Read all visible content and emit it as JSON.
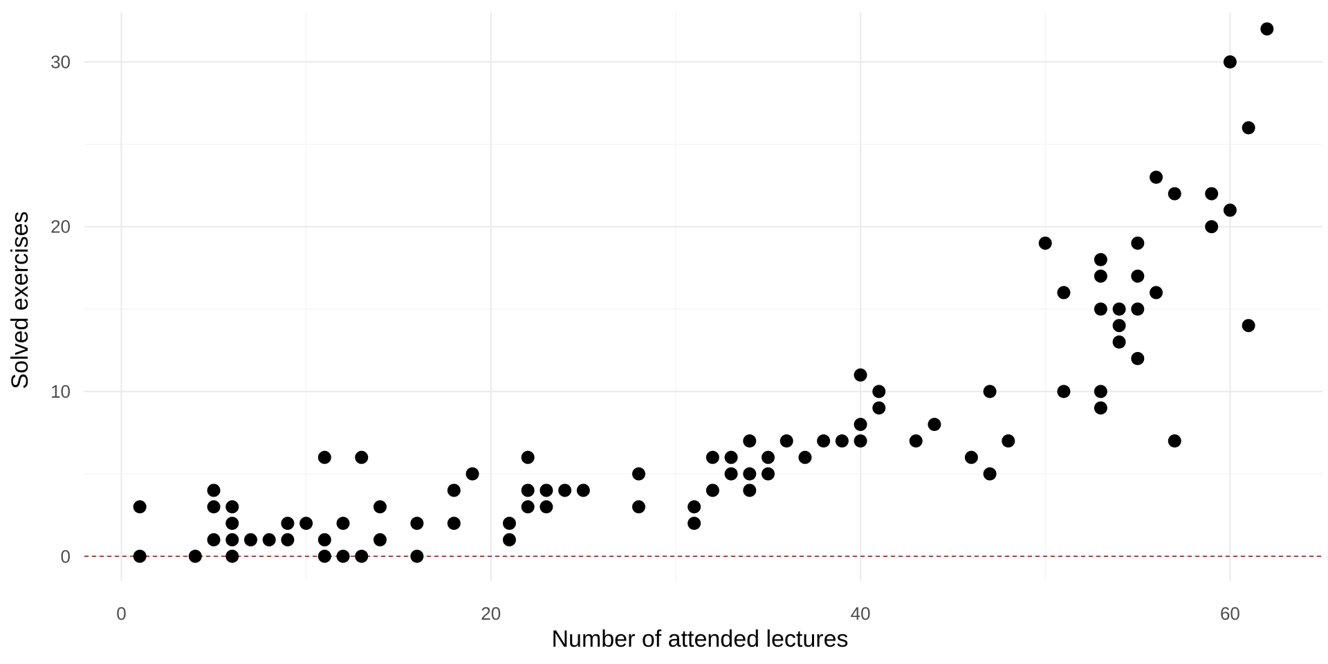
{
  "chart_data": {
    "type": "scatter",
    "xlabel": "Number of attended lectures",
    "ylabel": "Solved exercises",
    "xlim": [
      -2,
      65
    ],
    "ylim": [
      -1.5,
      33
    ],
    "x_ticks": [
      0,
      20,
      40,
      60
    ],
    "y_ticks": [
      0,
      10,
      20,
      30
    ],
    "x_minor_ticks": [
      10,
      30,
      50
    ],
    "y_minor_ticks": [
      5,
      15,
      25
    ],
    "grid": true,
    "legend": "none",
    "reference_line": {
      "y": 0,
      "style": "dashed",
      "color": "#8b1a1a"
    },
    "point_color": "#000000",
    "points": [
      {
        "x": 1,
        "y": 3
      },
      {
        "x": 1,
        "y": 0
      },
      {
        "x": 4,
        "y": 0
      },
      {
        "x": 5,
        "y": 4
      },
      {
        "x": 5,
        "y": 3
      },
      {
        "x": 5,
        "y": 1
      },
      {
        "x": 6,
        "y": 3
      },
      {
        "x": 6,
        "y": 2
      },
      {
        "x": 6,
        "y": 1
      },
      {
        "x": 6,
        "y": 0
      },
      {
        "x": 7,
        "y": 1
      },
      {
        "x": 8,
        "y": 1
      },
      {
        "x": 9,
        "y": 2
      },
      {
        "x": 9,
        "y": 1
      },
      {
        "x": 10,
        "y": 2
      },
      {
        "x": 11,
        "y": 6
      },
      {
        "x": 11,
        "y": 1
      },
      {
        "x": 11,
        "y": 0
      },
      {
        "x": 12,
        "y": 2
      },
      {
        "x": 12,
        "y": 0
      },
      {
        "x": 13,
        "y": 6
      },
      {
        "x": 13,
        "y": 0
      },
      {
        "x": 14,
        "y": 3
      },
      {
        "x": 14,
        "y": 1
      },
      {
        "x": 16,
        "y": 2
      },
      {
        "x": 16,
        "y": 0
      },
      {
        "x": 18,
        "y": 4
      },
      {
        "x": 18,
        "y": 2
      },
      {
        "x": 19,
        "y": 5
      },
      {
        "x": 21,
        "y": 2
      },
      {
        "x": 21,
        "y": 1
      },
      {
        "x": 22,
        "y": 6
      },
      {
        "x": 22,
        "y": 4
      },
      {
        "x": 22,
        "y": 3
      },
      {
        "x": 23,
        "y": 4
      },
      {
        "x": 23,
        "y": 3
      },
      {
        "x": 24,
        "y": 4
      },
      {
        "x": 25,
        "y": 4
      },
      {
        "x": 28,
        "y": 5
      },
      {
        "x": 28,
        "y": 3
      },
      {
        "x": 31,
        "y": 3
      },
      {
        "x": 31,
        "y": 2
      },
      {
        "x": 32,
        "y": 6
      },
      {
        "x": 32,
        "y": 4
      },
      {
        "x": 33,
        "y": 6
      },
      {
        "x": 33,
        "y": 5
      },
      {
        "x": 34,
        "y": 7
      },
      {
        "x": 34,
        "y": 5
      },
      {
        "x": 34,
        "y": 4
      },
      {
        "x": 35,
        "y": 6
      },
      {
        "x": 35,
        "y": 5
      },
      {
        "x": 36,
        "y": 7
      },
      {
        "x": 37,
        "y": 6
      },
      {
        "x": 38,
        "y": 7
      },
      {
        "x": 39,
        "y": 7
      },
      {
        "x": 40,
        "y": 11
      },
      {
        "x": 40,
        "y": 8
      },
      {
        "x": 40,
        "y": 7
      },
      {
        "x": 41,
        "y": 10
      },
      {
        "x": 41,
        "y": 9
      },
      {
        "x": 43,
        "y": 7
      },
      {
        "x": 44,
        "y": 8
      },
      {
        "x": 46,
        "y": 6
      },
      {
        "x": 47,
        "y": 10
      },
      {
        "x": 47,
        "y": 5
      },
      {
        "x": 48,
        "y": 7
      },
      {
        "x": 50,
        "y": 19
      },
      {
        "x": 51,
        "y": 16
      },
      {
        "x": 51,
        "y": 10
      },
      {
        "x": 53,
        "y": 18
      },
      {
        "x": 53,
        "y": 17
      },
      {
        "x": 53,
        "y": 15
      },
      {
        "x": 53,
        "y": 10
      },
      {
        "x": 53,
        "y": 9
      },
      {
        "x": 54,
        "y": 15
      },
      {
        "x": 54,
        "y": 14
      },
      {
        "x": 54,
        "y": 13
      },
      {
        "x": 55,
        "y": 19
      },
      {
        "x": 55,
        "y": 17
      },
      {
        "x": 55,
        "y": 15
      },
      {
        "x": 55,
        "y": 12
      },
      {
        "x": 56,
        "y": 23
      },
      {
        "x": 56,
        "y": 16
      },
      {
        "x": 57,
        "y": 22
      },
      {
        "x": 57,
        "y": 7
      },
      {
        "x": 59,
        "y": 22
      },
      {
        "x": 59,
        "y": 20
      },
      {
        "x": 60,
        "y": 30
      },
      {
        "x": 60,
        "y": 21
      },
      {
        "x": 61,
        "y": 26
      },
      {
        "x": 61,
        "y": 14
      },
      {
        "x": 62,
        "y": 32
      }
    ]
  }
}
